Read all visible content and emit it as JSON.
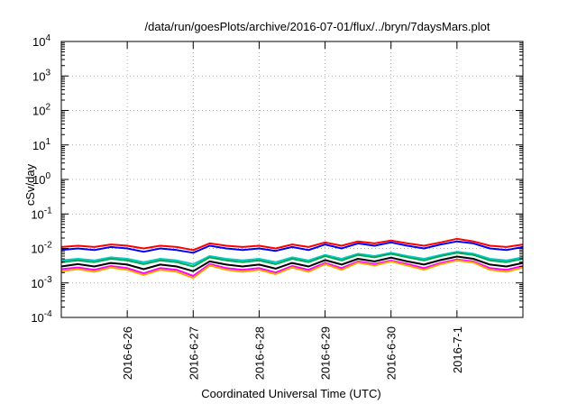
{
  "chart_data": {
    "type": "line",
    "title": "/data/run/goesPlots/archive/2016-07-01/flux/../bryn/7daysMars.plot",
    "xlabel": "Coordinated Universal Time (UTC)",
    "ylabel": "cSv/day",
    "y_scale": "log",
    "ylim_exponents": [
      -4,
      4
    ],
    "y_ticks": [
      {
        "base": "10",
        "exp": "4"
      },
      {
        "base": "10",
        "exp": "3"
      },
      {
        "base": "10",
        "exp": "2"
      },
      {
        "base": "10",
        "exp": "1"
      },
      {
        "base": "10",
        "exp": "0"
      },
      {
        "base": "10",
        "exp": "-1"
      },
      {
        "base": "10",
        "exp": "-2"
      },
      {
        "base": "10",
        "exp": "-3"
      },
      {
        "base": "10",
        "exp": "-4"
      }
    ],
    "x_ticks": [
      "2016-6-26",
      "2016-6-27",
      "2016-6-28",
      "2016-6-29",
      "2016-6-30",
      "2016-7-1"
    ],
    "x_range_days": [
      0,
      7
    ],
    "grid": true,
    "x": [
      0,
      0.25,
      0.5,
      0.75,
      1,
      1.25,
      1.5,
      1.75,
      2,
      2.25,
      2.5,
      2.75,
      3,
      3.25,
      3.5,
      3.75,
      4,
      4.25,
      4.5,
      4.75,
      5,
      5.25,
      5.5,
      5.75,
      6,
      6.25,
      6.5,
      6.75,
      7
    ],
    "series": [
      {
        "color": "#ff0000",
        "values": [
          0.011,
          0.012,
          0.011,
          0.013,
          0.012,
          0.01,
          0.012,
          0.011,
          0.009,
          0.014,
          0.012,
          0.011,
          0.012,
          0.01,
          0.013,
          0.011,
          0.015,
          0.012,
          0.016,
          0.014,
          0.017,
          0.014,
          0.012,
          0.015,
          0.019,
          0.016,
          0.012,
          0.011,
          0.013
        ]
      },
      {
        "color": "#0000ff",
        "values": [
          0.009,
          0.01,
          0.009,
          0.011,
          0.01,
          0.008,
          0.01,
          0.009,
          0.0075,
          0.012,
          0.01,
          0.009,
          0.01,
          0.0085,
          0.011,
          0.009,
          0.013,
          0.01,
          0.014,
          0.012,
          0.015,
          0.012,
          0.01,
          0.013,
          0.016,
          0.014,
          0.01,
          0.009,
          0.011
        ]
      },
      {
        "color": "#00cccc",
        "values": [
          0.0045,
          0.005,
          0.0045,
          0.0055,
          0.005,
          0.004,
          0.005,
          0.0045,
          0.0035,
          0.006,
          0.005,
          0.0045,
          0.005,
          0.004,
          0.0055,
          0.0045,
          0.0065,
          0.005,
          0.007,
          0.006,
          0.0075,
          0.006,
          0.005,
          0.0065,
          0.008,
          0.007,
          0.005,
          0.0045,
          0.0055
        ]
      },
      {
        "color": "#00aa55",
        "values": [
          0.004,
          0.0045,
          0.004,
          0.005,
          0.0045,
          0.0035,
          0.0045,
          0.004,
          0.003,
          0.0055,
          0.0045,
          0.004,
          0.0045,
          0.0035,
          0.005,
          0.004,
          0.006,
          0.0045,
          0.0065,
          0.0055,
          0.007,
          0.0055,
          0.0045,
          0.006,
          0.0075,
          0.0065,
          0.0045,
          0.004,
          0.005
        ]
      },
      {
        "color": "#000000",
        "values": [
          0.003,
          0.0035,
          0.003,
          0.0038,
          0.0034,
          0.0025,
          0.0034,
          0.003,
          0.0022,
          0.0042,
          0.0034,
          0.003,
          0.0034,
          0.0026,
          0.0038,
          0.003,
          0.0046,
          0.0034,
          0.005,
          0.0042,
          0.0054,
          0.0042,
          0.0034,
          0.0046,
          0.0058,
          0.005,
          0.0034,
          0.003,
          0.0038
        ]
      },
      {
        "color": "#ff00ff",
        "values": [
          0.0025,
          0.0028,
          0.0024,
          0.0031,
          0.0027,
          0.0019,
          0.0027,
          0.0024,
          0.0016,
          0.0035,
          0.0027,
          0.0024,
          0.0027,
          0.002,
          0.0031,
          0.0024,
          0.0038,
          0.0027,
          0.0042,
          0.0035,
          0.0045,
          0.0035,
          0.0027,
          0.0038,
          0.0048,
          0.0042,
          0.0027,
          0.0024,
          0.0031
        ]
      },
      {
        "color": "#ffa500",
        "values": [
          0.0022,
          0.0025,
          0.0021,
          0.0028,
          0.0024,
          0.0017,
          0.0024,
          0.0021,
          0.0014,
          0.0032,
          0.0024,
          0.0021,
          0.0024,
          0.0018,
          0.0028,
          0.0021,
          0.0035,
          0.0024,
          0.0039,
          0.0032,
          0.0042,
          0.0032,
          0.0024,
          0.0035,
          0.0045,
          0.0039,
          0.0024,
          0.0021,
          0.0028
        ]
      }
    ]
  }
}
